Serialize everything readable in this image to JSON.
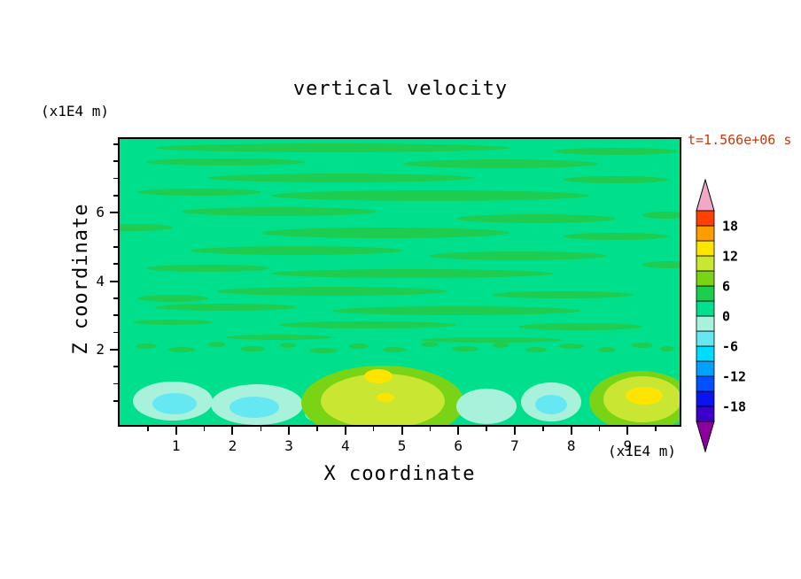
{
  "chart_data": {
    "type": "contour",
    "title": "vertical velocity",
    "time_label": "t=1.566e+06 s",
    "time_color": "#c23a10",
    "xlabel": "X coordinate",
    "x_unit": "(x1E4 m)",
    "ylabel": "Z coordinate",
    "y_unit": "(x1E4 m)",
    "x_range": [
      0,
      9.92
    ],
    "y_range": [
      -0.2,
      8.15
    ],
    "x_major_ticks": [
      1,
      2,
      3,
      4,
      5,
      6,
      7,
      8,
      9
    ],
    "x_minor_step": 0.5,
    "y_major_ticks": [
      2,
      4,
      6
    ],
    "y_minor_step": 0.5,
    "contour_interval": 3,
    "colorbar": {
      "labels": [
        18,
        12,
        6,
        0,
        -6,
        -12,
        -18
      ],
      "bands_bottom_to_top": [
        {
          "range": [
            -21,
            -18
          ],
          "color": "#3C00C8"
        },
        {
          "range": [
            -18,
            -15
          ],
          "color": "#0A14F0"
        },
        {
          "range": [
            -15,
            -12
          ],
          "color": "#0050FF"
        },
        {
          "range": [
            -12,
            -9
          ],
          "color": "#00A0FF"
        },
        {
          "range": [
            -9,
            -6
          ],
          "color": "#00DCFF"
        },
        {
          "range": [
            -6,
            -3
          ],
          "color": "#66E8F2"
        },
        {
          "range": [
            -3,
            0
          ],
          "color": "#A8F2DC"
        },
        {
          "range": [
            0,
            3
          ],
          "color": "#00E08C"
        },
        {
          "range": [
            3,
            6
          ],
          "color": "#1ECC50"
        },
        {
          "range": [
            6,
            9
          ],
          "color": "#78D414"
        },
        {
          "range": [
            9,
            12
          ],
          "color": "#C8E632"
        },
        {
          "range": [
            12,
            15
          ],
          "color": "#FFE400"
        },
        {
          "range": [
            15,
            18
          ],
          "color": "#FF9C00"
        },
        {
          "range": [
            18,
            21
          ],
          "color": "#FF4000"
        }
      ],
      "under_color": "#8C00A0",
      "over_color": "#F0A8C8"
    },
    "field": {
      "description": "Mostly uniform weak vertical velocity (~0, spring green) with wavy horizontal streaks of slightly positive values in the upper layer; near the bottom boundary: negative cells (pale cyan/cyan) around x=1.5-3 and x=6.5-8, and strong positive plumes (yellow-green with yellow cores) around x=4-6 and x=8.5-9.8.",
      "background_color": "#00E08C",
      "streak_color": "#1ECC50",
      "streaks": [
        [
          240,
          10,
          200,
          5
        ],
        [
          560,
          14,
          70,
          4
        ],
        [
          120,
          26,
          90,
          4
        ],
        [
          430,
          28,
          110,
          5
        ],
        [
          250,
          44,
          150,
          5
        ],
        [
          560,
          46,
          60,
          4
        ],
        [
          90,
          60,
          70,
          4
        ],
        [
          350,
          64,
          180,
          6
        ],
        [
          180,
          82,
          110,
          5
        ],
        [
          470,
          90,
          90,
          5
        ],
        [
          615,
          86,
          25,
          4
        ],
        [
          10,
          100,
          50,
          4
        ],
        [
          300,
          106,
          140,
          6
        ],
        [
          560,
          110,
          60,
          4
        ],
        [
          200,
          126,
          120,
          5
        ],
        [
          450,
          132,
          100,
          5
        ],
        [
          620,
          142,
          30,
          4
        ],
        [
          100,
          146,
          70,
          4
        ],
        [
          330,
          152,
          160,
          5
        ],
        [
          240,
          172,
          130,
          5
        ],
        [
          500,
          176,
          80,
          4
        ],
        [
          60,
          180,
          40,
          4
        ],
        [
          120,
          190,
          80,
          4
        ],
        [
          380,
          194,
          140,
          5
        ],
        [
          60,
          207,
          45,
          3
        ],
        [
          280,
          210,
          100,
          4
        ],
        [
          520,
          212,
          70,
          4
        ],
        [
          180,
          224,
          60,
          3
        ],
        [
          420,
          227,
          80,
          3
        ],
        [
          30,
          234,
          12,
          3
        ],
        [
          70,
          238,
          15,
          3
        ],
        [
          110,
          232,
          10,
          3
        ],
        [
          150,
          237,
          14,
          3
        ],
        [
          190,
          233,
          9,
          3
        ],
        [
          230,
          239,
          16,
          3
        ],
        [
          270,
          234,
          11,
          3
        ],
        [
          310,
          238,
          13,
          3
        ],
        [
          350,
          232,
          10,
          3
        ],
        [
          390,
          237,
          15,
          3
        ],
        [
          430,
          233,
          9,
          3
        ],
        [
          470,
          238,
          12,
          3
        ],
        [
          510,
          234,
          14,
          3
        ],
        [
          550,
          238,
          10,
          3
        ],
        [
          590,
          233,
          12,
          3
        ],
        [
          618,
          237,
          8,
          3
        ]
      ],
      "features": [
        {
          "color": "#A8F2DC",
          "e": [
            60,
            296,
            45,
            22
          ]
        },
        {
          "color": "#66E8F2",
          "e": [
            62,
            299,
            25,
            12
          ]
        },
        {
          "color": "#A8F2DC",
          "e": [
            155,
            300,
            52,
            23
          ]
        },
        {
          "color": "#66E8F2",
          "e": [
            152,
            303,
            28,
            12
          ]
        },
        {
          "color": "#A8F2DC",
          "e": [
            237,
            310,
            28,
            12
          ]
        },
        {
          "color": "#78D414",
          "e": [
            297,
            298,
            92,
            42
          ]
        },
        {
          "color": "#C8E632",
          "e": [
            297,
            296,
            70,
            31
          ]
        },
        {
          "color": "#FFE400",
          "e": [
            292,
            268,
            16,
            8
          ]
        },
        {
          "color": "#FFE400",
          "e": [
            300,
            292,
            10,
            5
          ]
        },
        {
          "color": "#A8F2DC",
          "e": [
            414,
            302,
            34,
            20
          ]
        },
        {
          "color": "#A8F2DC",
          "e": [
            487,
            297,
            34,
            22
          ]
        },
        {
          "color": "#66E8F2",
          "e": [
            487,
            300,
            18,
            11
          ]
        },
        {
          "color": "#78D414",
          "e": [
            588,
            296,
            58,
            34
          ]
        },
        {
          "color": "#C8E632",
          "e": [
            590,
            294,
            44,
            26
          ]
        },
        {
          "color": "#FFE400",
          "e": [
            592,
            290,
            21,
            10
          ]
        }
      ]
    }
  }
}
